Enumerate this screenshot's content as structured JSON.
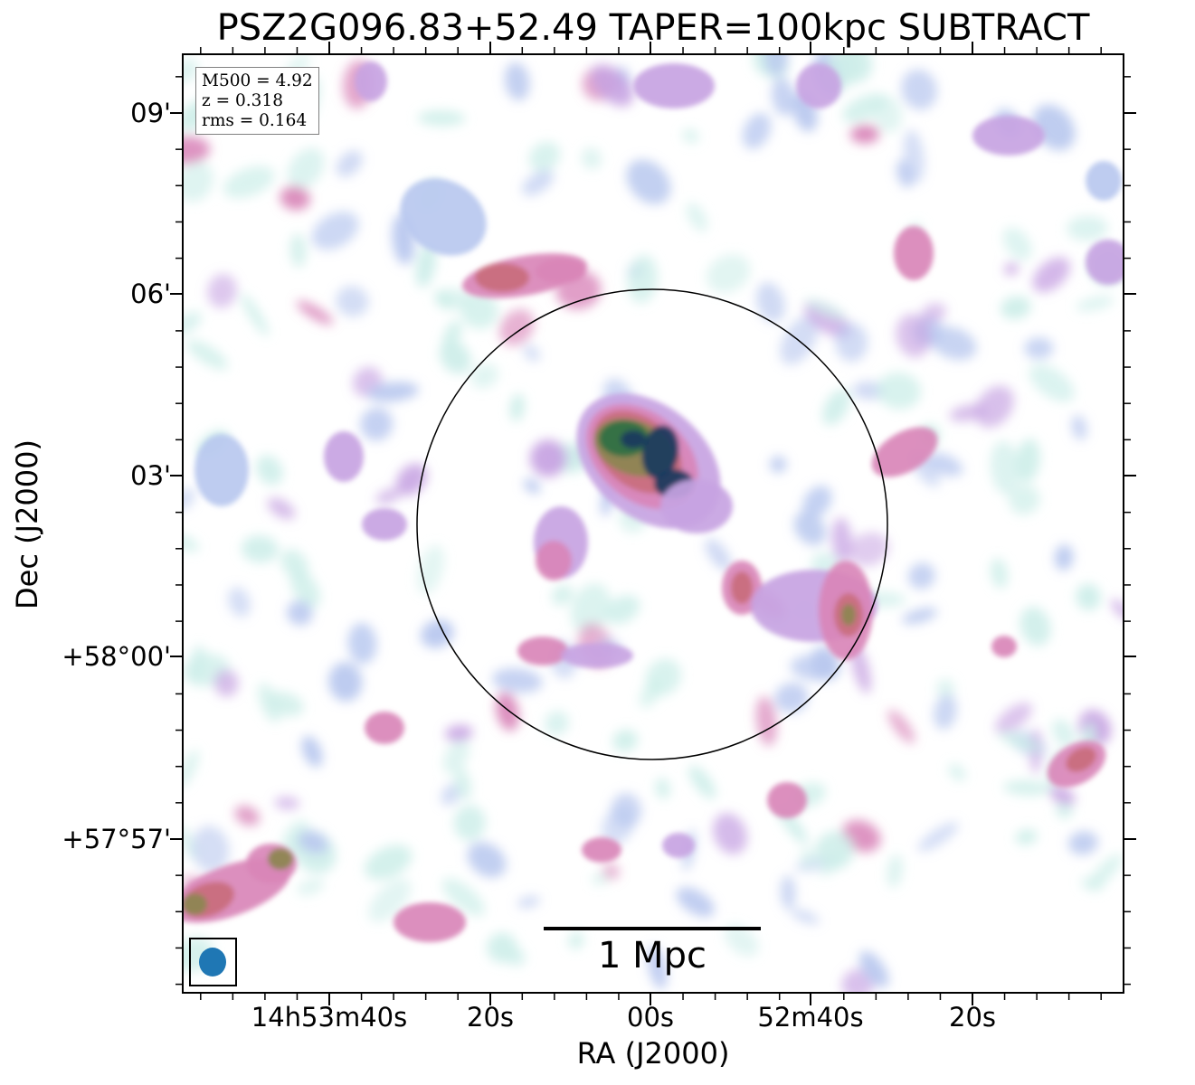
{
  "title": "PSZ2G096.83+52.49 TAPER=100kpc SUBTRACT",
  "axes": {
    "xlabel": "RA (J2000)",
    "ylabel": "Dec (J2000)",
    "x_ticks": [
      "14h53m40s",
      "20s",
      "00s",
      "52m40s",
      "20s"
    ],
    "y_ticks": [
      "09'",
      "06'",
      "03'",
      "+58°00'",
      "+57°57'"
    ]
  },
  "info": {
    "m500": "M500 = 4.92",
    "z": "z = 0.318",
    "rms": "rms = 0.164"
  },
  "scale_bar": {
    "label": "1 Mpc"
  },
  "colors": {
    "colormap": [
      "#ffffff",
      "#cdeee9",
      "#b9c8ef",
      "#c7a3e2",
      "#d985b9",
      "#c96c7d",
      "#8c8650",
      "#2f7044",
      "#1a3a5e"
    ],
    "beam": "#1f77b4",
    "circle": "#000000"
  }
}
